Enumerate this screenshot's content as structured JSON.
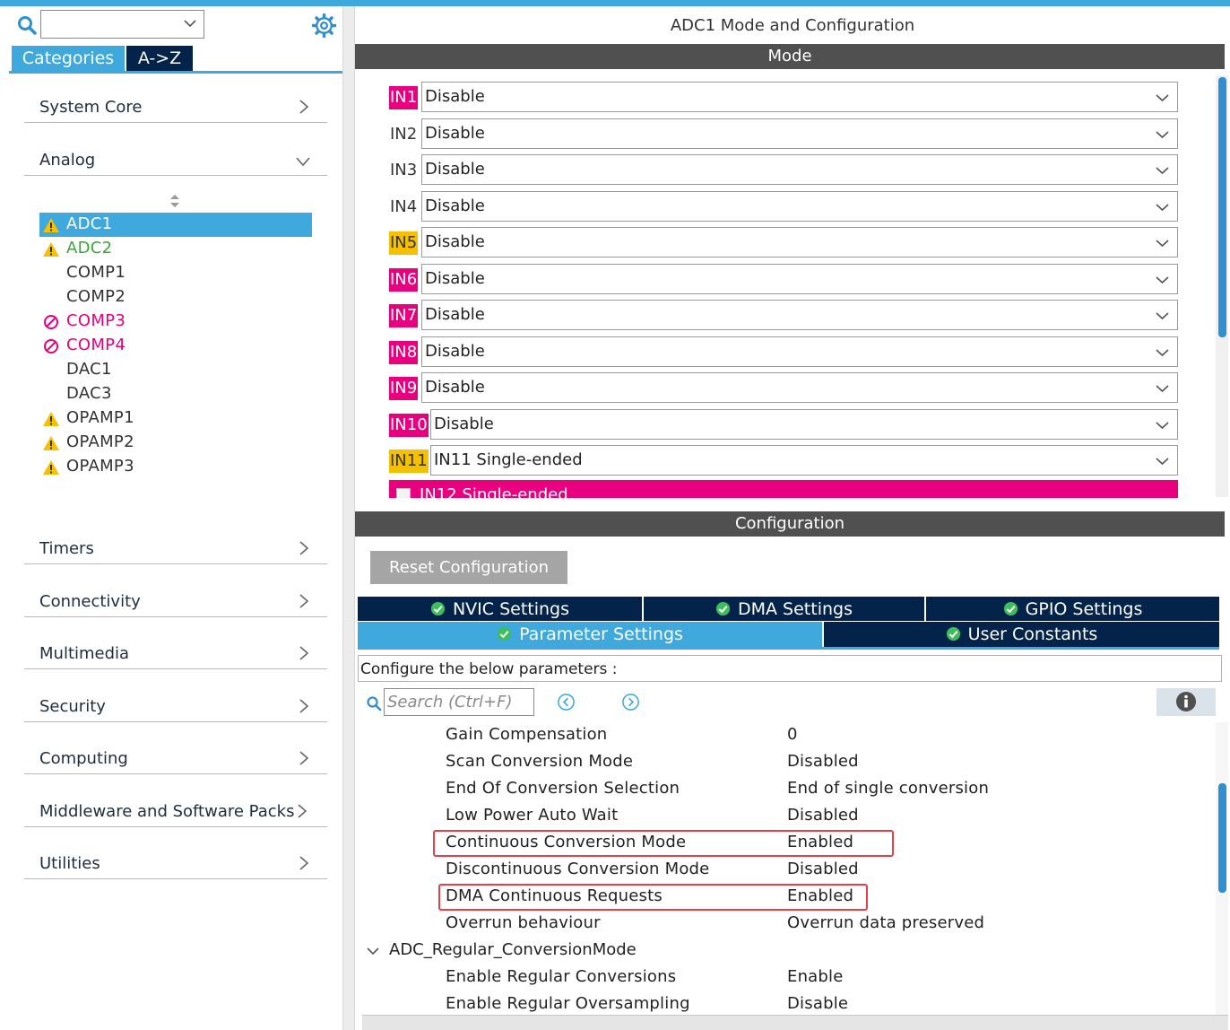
{
  "left": {
    "search": {
      "value": ""
    },
    "tabs": {
      "categories": "Categories",
      "az": "A->Z"
    },
    "categories": {
      "system_core": "System Core",
      "analog": "Analog",
      "timers": "Timers",
      "connectivity": "Connectivity",
      "multimedia": "Multimedia",
      "security": "Security",
      "computing": "Computing",
      "middleware": "Middleware and Software Packs",
      "utilities": "Utilities"
    },
    "analog_items": [
      {
        "label": "ADC1",
        "status": "warning",
        "color": "#ffffff"
      },
      {
        "label": "ADC2",
        "status": "warning",
        "color": "#3aa63a"
      },
      {
        "label": "COMP1",
        "status": "none",
        "color": "#333333"
      },
      {
        "label": "COMP2",
        "status": "none",
        "color": "#333333"
      },
      {
        "label": "COMP3",
        "status": "disabled",
        "color": "#e8007f"
      },
      {
        "label": "COMP4",
        "status": "disabled",
        "color": "#e8007f"
      },
      {
        "label": "DAC1",
        "status": "none",
        "color": "#333333"
      },
      {
        "label": "DAC3",
        "status": "none",
        "color": "#333333"
      },
      {
        "label": "OPAMP1",
        "status": "warning",
        "color": "#333333"
      },
      {
        "label": "OPAMP2",
        "status": "warning",
        "color": "#333333"
      },
      {
        "label": "OPAMP3",
        "status": "warning",
        "color": "#333333"
      }
    ]
  },
  "right": {
    "title": "ADC1 Mode and Configuration",
    "mode_bar": "Mode",
    "mode_rows": [
      {
        "pin": "IN1",
        "value": "Disable",
        "highlight": "pink"
      },
      {
        "pin": "IN2",
        "value": "Disable",
        "highlight": "none"
      },
      {
        "pin": "IN3",
        "value": "Disable",
        "highlight": "none"
      },
      {
        "pin": "IN4",
        "value": "Disable",
        "highlight": "none"
      },
      {
        "pin": "IN5",
        "value": "Disable",
        "highlight": "yellow"
      },
      {
        "pin": "IN6",
        "value": "Disable",
        "highlight": "pink"
      },
      {
        "pin": "IN7",
        "value": "Disable",
        "highlight": "pink"
      },
      {
        "pin": "IN8",
        "value": "Disable",
        "highlight": "pink"
      },
      {
        "pin": "IN9",
        "value": "Disable",
        "highlight": "pink"
      },
      {
        "pin": "IN10",
        "value": "Disable",
        "highlight": "pink"
      },
      {
        "pin": "IN11",
        "value": "IN11 Single-ended",
        "highlight": "yellow"
      }
    ],
    "in12_label": "IN12 Single-ended",
    "config_bar": "Configuration",
    "reset_button": "Reset Configuration",
    "tabs": {
      "nvic": "NVIC Settings",
      "dma": "DMA Settings",
      "gpio": "GPIO Settings",
      "parameter": "Parameter Settings",
      "user_constants": "User Constants"
    },
    "config_desc": "Configure the below parameters :",
    "param_search": {
      "placeholder": "Search (Ctrl+F)"
    },
    "params": [
      {
        "name": "Gain Compensation",
        "value": "0"
      },
      {
        "name": "Scan Conversion Mode",
        "value": "Disabled"
      },
      {
        "name": "End Of Conversion Selection",
        "value": "End of single conversion"
      },
      {
        "name": "Low Power Auto Wait",
        "value": "Disabled"
      },
      {
        "name": "Continuous Conversion Mode",
        "value": "Enabled"
      },
      {
        "name": "Discontinuous Conversion Mode",
        "value": "Disabled"
      },
      {
        "name": "DMA Continuous Requests",
        "value": "Enabled"
      },
      {
        "name": "Overrun behaviour",
        "value": "Overrun data preserved"
      }
    ],
    "group": "ADC_Regular_ConversionMode",
    "group_params": [
      {
        "name": "Enable Regular Conversions",
        "value": "Enable"
      },
      {
        "name": "Enable Regular Oversampling",
        "value": "Disable"
      }
    ]
  }
}
